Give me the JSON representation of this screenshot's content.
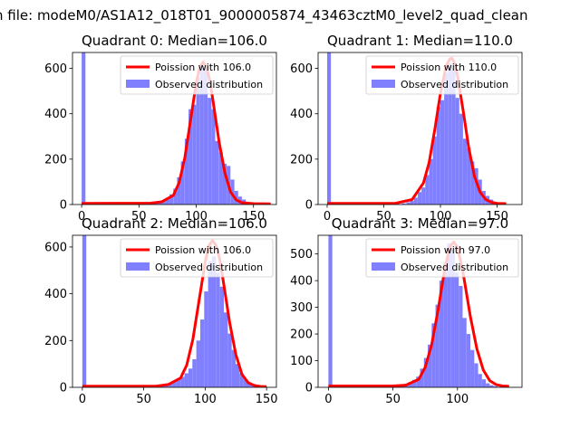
{
  "figure": {
    "suptitle": "n file: modeM0/AS1A12_018T01_9000005874_43463cztM0_level2_quad_clean"
  },
  "colors": {
    "histogram": "#8080ff",
    "poisson": "#ff0000",
    "axes": "#000000",
    "background": "#ffffff"
  },
  "chart_data": [
    {
      "type": "bar",
      "title": "Quadrant 0: Median=106.0",
      "legend": [
        "Poission with 106.0",
        "Observed distribution"
      ],
      "legend_position": "upper right",
      "median": 106,
      "xlim": [
        -8,
        170
      ],
      "ylim": [
        0,
        670
      ],
      "xticks": [
        0,
        50,
        100,
        150
      ],
      "yticks": [
        0,
        200,
        400,
        600
      ],
      "bin_width": 3.3,
      "hist_x": [
        0,
        60,
        63.3,
        66.6,
        70,
        73.3,
        76.6,
        80,
        83.3,
        86.6,
        90,
        93.3,
        96.6,
        100,
        103.3,
        106.6,
        110,
        113.3,
        116.6,
        120,
        123.3,
        126.6,
        130,
        133.3,
        136.6,
        140,
        143.3
      ],
      "hist_y": [
        670,
        5,
        8,
        12,
        18,
        30,
        45,
        70,
        120,
        190,
        290,
        420,
        440,
        560,
        610,
        600,
        470,
        420,
        280,
        230,
        180,
        170,
        110,
        60,
        35,
        22,
        10
      ],
      "poisson_x": [
        0,
        60,
        70,
        80,
        85,
        90,
        95,
        100,
        103,
        106,
        109,
        112,
        115,
        120,
        125,
        130,
        135,
        140,
        150,
        165
      ],
      "poisson_y": [
        5,
        6,
        12,
        40,
        95,
        205,
        370,
        535,
        605,
        628,
        605,
        545,
        445,
        275,
        140,
        55,
        20,
        8,
        4,
        3
      ]
    },
    {
      "type": "bar",
      "title": "Quadrant 1: Median=110.0",
      "legend": [
        "Poission with 110.0",
        "Observed distribution"
      ],
      "legend_position": "upper right",
      "median": 110,
      "xlim": [
        -8,
        172
      ],
      "ylim": [
        0,
        670
      ],
      "xticks": [
        0,
        50,
        100,
        150
      ],
      "yticks": [
        0,
        200,
        400,
        600
      ],
      "bin_width": 3.3,
      "hist_x": [
        0,
        66,
        70,
        73.3,
        76.6,
        80,
        83.3,
        86.6,
        90,
        93.3,
        96.6,
        100,
        103.3,
        106.6,
        110,
        113.3,
        116.6,
        120,
        123.3,
        126.6,
        130,
        133.3,
        136.6,
        140,
        143.3,
        146.6
      ],
      "hist_y": [
        670,
        5,
        10,
        16,
        30,
        55,
        75,
        130,
        200,
        300,
        430,
        460,
        580,
        620,
        600,
        470,
        400,
        290,
        250,
        190,
        160,
        110,
        60,
        38,
        22,
        10
      ],
      "poisson_x": [
        0,
        60,
        75,
        85,
        90,
        95,
        100,
        105,
        108,
        110,
        112,
        115,
        120,
        125,
        130,
        135,
        140,
        145,
        150,
        158
      ],
      "poisson_y": [
        5,
        5,
        22,
        95,
        185,
        330,
        490,
        610,
        640,
        645,
        630,
        570,
        415,
        250,
        125,
        55,
        22,
        10,
        5,
        4
      ]
    },
    {
      "type": "bar",
      "title": "Quadrant 2: Median=106.0",
      "legend": [
        "Poission with 106.0",
        "Observed distribution"
      ],
      "legend_position": "upper right",
      "median": 106,
      "xlim": [
        -8,
        158
      ],
      "ylim": [
        0,
        650
      ],
      "xticks": [
        0,
        50,
        100,
        150
      ],
      "yticks": [
        0,
        200,
        400,
        600
      ],
      "bin_width": 3.2,
      "hist_x": [
        0,
        60,
        64,
        67.2,
        70.4,
        73.6,
        76.8,
        80,
        83.2,
        86.4,
        89.6,
        92.8,
        96,
        99.2,
        102.4,
        105.6,
        108.8,
        112,
        115.2,
        118.4,
        121.6,
        124.8,
        128,
        131.2,
        134.4,
        137.6,
        140.8
      ],
      "hist_y": [
        650,
        4,
        6,
        10,
        16,
        25,
        35,
        45,
        60,
        80,
        120,
        200,
        290,
        410,
        540,
        560,
        490,
        430,
        320,
        230,
        160,
        100,
        60,
        35,
        18,
        10,
        5
      ],
      "poisson_x": [
        0,
        60,
        70,
        80,
        85,
        90,
        95,
        100,
        103,
        106,
        109,
        112,
        115,
        120,
        125,
        130,
        135,
        140,
        145,
        150
      ],
      "poisson_y": [
        5,
        5,
        12,
        40,
        95,
        205,
        370,
        535,
        605,
        628,
        605,
        545,
        445,
        275,
        140,
        55,
        20,
        8,
        4,
        3
      ]
    },
    {
      "type": "bar",
      "title": "Quadrant 3: Median=97.0",
      "legend": [
        "Poission with 97.0",
        "Observed distribution"
      ],
      "legend_position": "upper right",
      "median": 97,
      "xlim": [
        -8,
        150
      ],
      "ylim": [
        0,
        570
      ],
      "xticks": [
        0,
        50,
        100
      ],
      "yticks": [
        0,
        100,
        200,
        300,
        400,
        500
      ],
      "bin_width": 3.0,
      "hist_x": [
        0,
        50,
        53,
        56,
        59,
        62,
        65,
        68,
        71,
        74,
        77,
        80,
        83,
        86,
        89,
        92,
        95,
        98,
        101,
        104,
        107,
        110,
        113,
        116,
        119,
        122,
        125,
        128
      ],
      "hist_y": [
        570,
        4,
        6,
        9,
        14,
        20,
        28,
        40,
        70,
        110,
        160,
        240,
        310,
        400,
        470,
        540,
        520,
        430,
        380,
        260,
        200,
        140,
        90,
        50,
        30,
        15,
        8,
        4
      ],
      "poisson_x": [
        0,
        50,
        60,
        70,
        75,
        80,
        85,
        90,
        94,
        97,
        100,
        104,
        110,
        115,
        120,
        125,
        130,
        135,
        140
      ],
      "poisson_y": [
        5,
        5,
        8,
        30,
        75,
        160,
        290,
        440,
        525,
        545,
        525,
        440,
        265,
        145,
        65,
        25,
        10,
        5,
        4
      ]
    }
  ]
}
